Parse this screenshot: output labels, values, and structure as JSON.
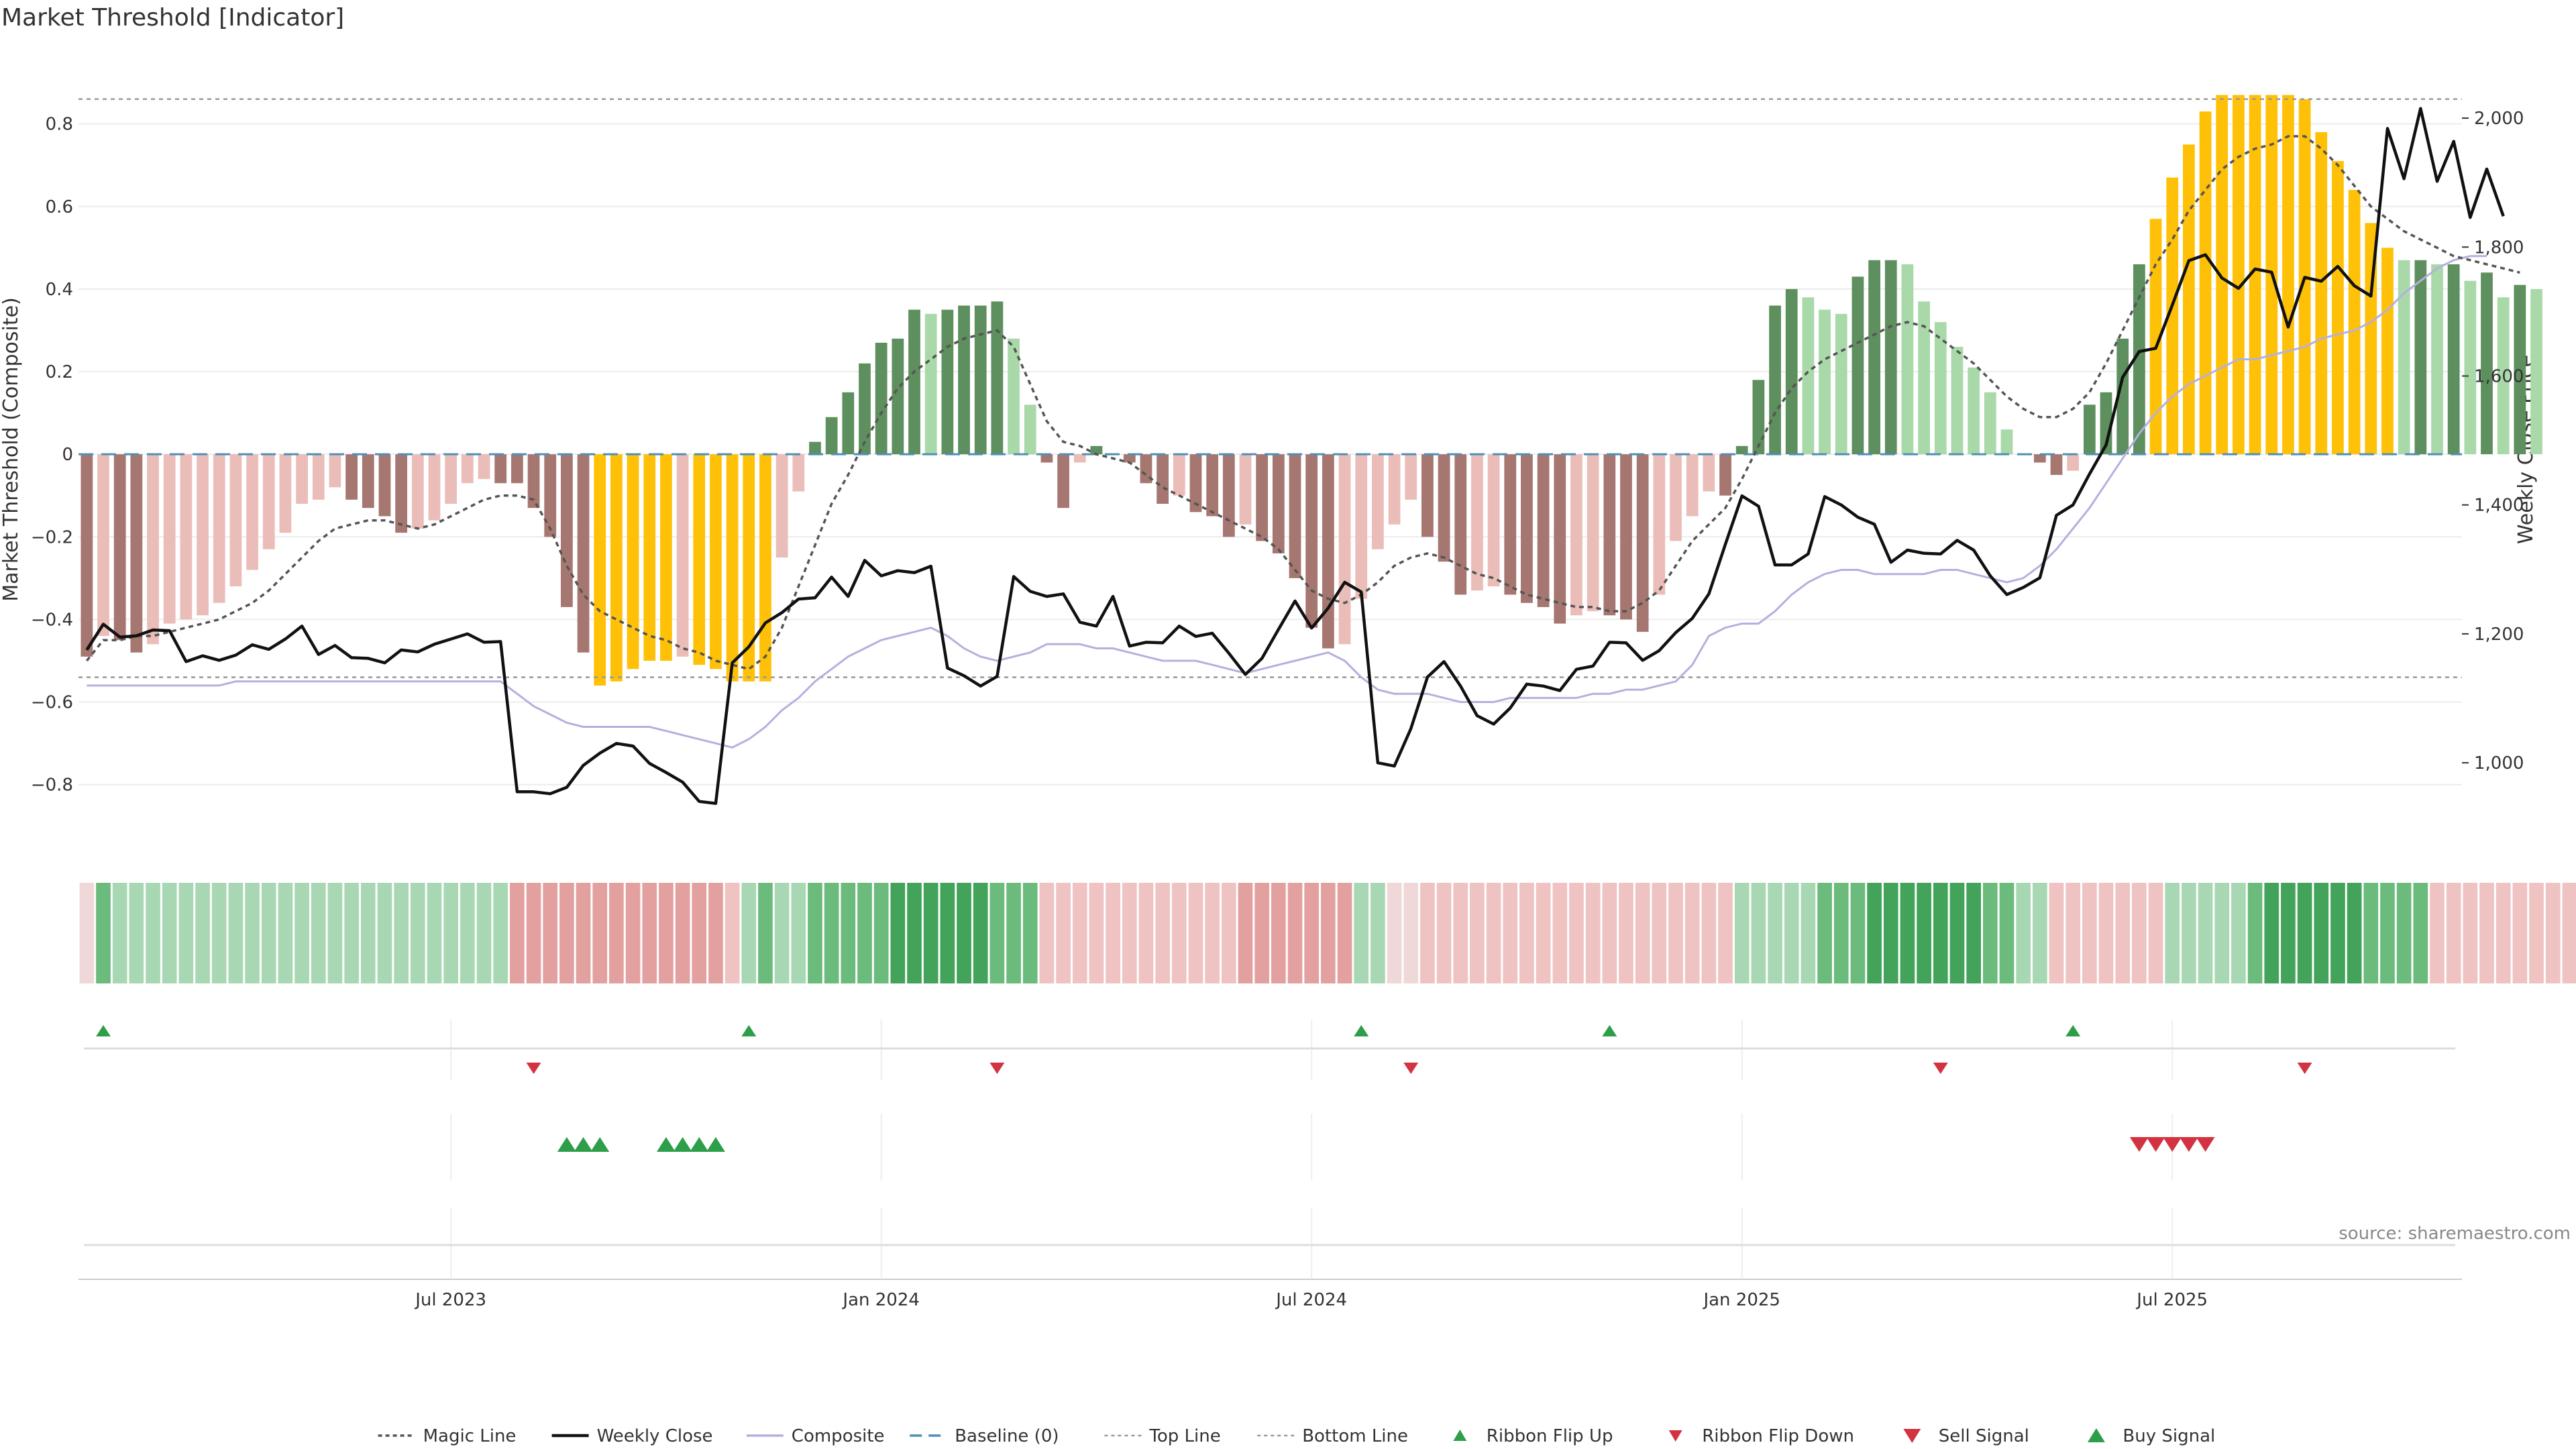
{
  "chart_data": {
    "type": "bar",
    "title": "Market Threshold [Indicator]",
    "ylabel": "Market Threshold (Composite)",
    "y2label": "Weekly Close Price",
    "source": "source: sharemaestro.com",
    "ylim": [
      -0.95,
      0.97
    ],
    "y2lim": [
      870,
      2100
    ],
    "top_line": 0.86,
    "bottom_line": -0.54,
    "grid": true,
    "legend_position": "bottom-center",
    "y_ticks": [
      {
        "v": 0.8,
        "label": "0.8"
      },
      {
        "v": 0.6,
        "label": "0.6"
      },
      {
        "v": 0.4,
        "label": "0.4"
      },
      {
        "v": 0.2,
        "label": "0.2"
      },
      {
        "v": 0,
        "label": "0"
      },
      {
        "v": -0.2,
        "label": "−0.2"
      },
      {
        "v": -0.4,
        "label": "−0.4"
      },
      {
        "v": -0.6,
        "label": "−0.6"
      },
      {
        "v": -0.8,
        "label": "−0.8"
      }
    ],
    "y2_ticks": [
      {
        "v": 2000,
        "label": "2,000"
      },
      {
        "v": 1800,
        "label": "1,800"
      },
      {
        "v": 1600,
        "label": "1,600"
      },
      {
        "v": 1400,
        "label": "1,400"
      },
      {
        "v": 1200,
        "label": "1,200"
      },
      {
        "v": 1000,
        "label": "1,000"
      }
    ],
    "x_ticks": [
      {
        "week": 22,
        "label": "Jul 2023"
      },
      {
        "week": 48,
        "label": "Jan 2024"
      },
      {
        "week": 74,
        "label": "Jul 2024"
      },
      {
        "week": 100,
        "label": "Jan 2025"
      },
      {
        "week": 126,
        "label": "Jul 2025"
      }
    ],
    "weeks": 144,
    "composite_bars": [
      -0.49,
      -0.44,
      -0.45,
      -0.48,
      -0.46,
      -0.41,
      -0.4,
      -0.39,
      -0.36,
      -0.32,
      -0.28,
      -0.23,
      -0.19,
      -0.12,
      -0.11,
      -0.08,
      -0.11,
      -0.13,
      -0.15,
      -0.19,
      -0.18,
      -0.16,
      -0.12,
      -0.07,
      -0.06,
      -0.07,
      -0.07,
      -0.13,
      -0.2,
      -0.37,
      -0.48,
      -0.56,
      -0.55,
      -0.52,
      -0.5,
      -0.5,
      -0.49,
      -0.51,
      -0.52,
      -0.55,
      -0.55,
      -0.55,
      -0.25,
      -0.09,
      0.03,
      0.09,
      0.15,
      0.22,
      0.27,
      0.28,
      0.35,
      0.34,
      0.35,
      0.36,
      0.36,
      0.37,
      0.28,
      0.12,
      -0.02,
      -0.13,
      -0.02,
      0.02,
      0,
      -0.02,
      -0.07,
      -0.12,
      -0.1,
      -0.14,
      -0.15,
      -0.2,
      -0.17,
      -0.21,
      -0.24,
      -0.3,
      -0.42,
      -0.47,
      -0.46,
      -0.35,
      -0.23,
      -0.17,
      -0.11,
      -0.2,
      -0.26,
      -0.34,
      -0.33,
      -0.32,
      -0.34,
      -0.36,
      -0.37,
      -0.41,
      -0.39,
      -0.38,
      -0.39,
      -0.4,
      -0.43,
      -0.34,
      -0.21,
      -0.15,
      -0.09,
      -0.1,
      0.02,
      0.18,
      0.36,
      0.4,
      0.38,
      0.35,
      0.34,
      0.43,
      0.47,
      0.47,
      0.46,
      0.37,
      0.32,
      0.26,
      0.21,
      0.15,
      0.06,
      0,
      -0.02,
      -0.05,
      -0.04,
      0.12,
      0.15,
      0.28,
      0.46,
      0.57,
      0.67,
      0.75,
      0.83,
      0.87,
      0.87,
      0.87,
      0.87,
      0.87,
      0.86,
      0.78,
      0.71,
      0.64,
      0.56,
      0.5,
      0.47,
      0.47,
      0.46,
      0.46,
      0.42,
      0.44,
      0.38,
      0.41,
      0.4
    ],
    "magic_line": [
      -0.5,
      -0.45,
      -0.45,
      -0.44,
      -0.44,
      -0.43,
      -0.42,
      -0.41,
      -0.4,
      -0.38,
      -0.36,
      -0.33,
      -0.29,
      -0.25,
      -0.21,
      -0.18,
      -0.17,
      -0.16,
      -0.16,
      -0.17,
      -0.18,
      -0.17,
      -0.15,
      -0.13,
      -0.11,
      -0.1,
      -0.1,
      -0.11,
      -0.18,
      -0.27,
      -0.34,
      -0.38,
      -0.4,
      -0.42,
      -0.44,
      -0.45,
      -0.47,
      -0.48,
      -0.5,
      -0.51,
      -0.52,
      -0.49,
      -0.42,
      -0.32,
      -0.22,
      -0.12,
      -0.05,
      0.03,
      0.1,
      0.16,
      0.2,
      0.23,
      0.26,
      0.28,
      0.29,
      0.3,
      0.26,
      0.17,
      0.08,
      0.03,
      0.02,
      0.0,
      -0.01,
      -0.02,
      -0.05,
      -0.08,
      -0.1,
      -0.12,
      -0.14,
      -0.16,
      -0.18,
      -0.2,
      -0.23,
      -0.28,
      -0.33,
      -0.35,
      -0.36,
      -0.34,
      -0.31,
      -0.27,
      -0.25,
      -0.24,
      -0.25,
      -0.27,
      -0.29,
      -0.3,
      -0.32,
      -0.34,
      -0.35,
      -0.36,
      -0.37,
      -0.37,
      -0.38,
      -0.38,
      -0.36,
      -0.33,
      -0.27,
      -0.21,
      -0.17,
      -0.13,
      -0.06,
      0.02,
      0.1,
      0.16,
      0.2,
      0.23,
      0.25,
      0.27,
      0.29,
      0.31,
      0.32,
      0.31,
      0.28,
      0.25,
      0.22,
      0.18,
      0.14,
      0.11,
      0.09,
      0.09,
      0.11,
      0.15,
      0.22,
      0.3,
      0.38,
      0.46,
      0.52,
      0.59,
      0.64,
      0.69,
      0.72,
      0.74,
      0.75,
      0.77,
      0.77,
      0.74,
      0.7,
      0.65,
      0.6,
      0.57,
      0.54,
      0.52,
      0.5,
      0.48,
      0.47,
      0.46,
      0.45,
      0.44
    ],
    "weekly_close": [
      1175,
      1215,
      1195,
      1197,
      1206,
      1205,
      1157,
      1166,
      1159,
      1167,
      1183,
      1176,
      1192,
      1212,
      1168,
      1182,
      1163,
      1162,
      1155,
      1175,
      1172,
      1184,
      1192,
      1200,
      1187,
      1188,
      955,
      955,
      952,
      962,
      996,
      1015,
      1030,
      1026,
      999,
      985,
      970,
      940,
      937,
      1155,
      1180,
      1217,
      1233,
      1254,
      1256,
      1288,
      1258,
      1314,
      1290,
      1298,
      1295,
      1305,
      1147,
      1135,
      1119,
      1134,
      1289,
      1266,
      1258,
      1262,
      1218,
      1212,
      1258,
      1181,
      1187,
      1186,
      1212,
      1196,
      1201,
      1170,
      1137,
      1162,
      1207,
      1251,
      1209,
      1240,
      1280,
      1265,
      1000,
      995,
      1053,
      1133,
      1157,
      1119,
      1073,
      1060,
      1085,
      1122,
      1119,
      1112,
      1145,
      1150,
      1187,
      1186,
      1159,
      1174,
      1202,
      1224,
      1262,
      1339,
      1414,
      1398,
      1307,
      1307,
      1324,
      1413,
      1400,
      1381,
      1370,
      1311,
      1330,
      1325,
      1324,
      1345,
      1330,
      1290,
      1261,
      1272,
      1287,
      1384,
      1400,
      1448,
      1493,
      1598,
      1638,
      1643,
      1710,
      1779,
      1788,
      1752,
      1736,
      1766,
      1761,
      1676,
      1753,
      1747,
      1770,
      1740,
      1724,
      1984,
      1906,
      2015,
      1902,
      1964,
      1846,
      1921,
      1848
    ],
    "composite_line": [
      -0.56,
      -0.56,
      -0.56,
      -0.56,
      -0.56,
      -0.56,
      -0.56,
      -0.56,
      -0.56,
      -0.55,
      -0.55,
      -0.55,
      -0.55,
      -0.55,
      -0.55,
      -0.55,
      -0.55,
      -0.55,
      -0.55,
      -0.55,
      -0.55,
      -0.55,
      -0.55,
      -0.55,
      -0.55,
      -0.55,
      -0.58,
      -0.61,
      -0.63,
      -0.65,
      -0.66,
      -0.66,
      -0.66,
      -0.66,
      -0.66,
      -0.67,
      -0.68,
      -0.69,
      -0.7,
      -0.71,
      -0.69,
      -0.66,
      -0.62,
      -0.59,
      -0.55,
      -0.52,
      -0.49,
      -0.47,
      -0.45,
      -0.44,
      -0.43,
      -0.42,
      -0.44,
      -0.47,
      -0.49,
      -0.5,
      -0.49,
      -0.48,
      -0.46,
      -0.46,
      -0.46,
      -0.47,
      -0.47,
      -0.48,
      -0.49,
      -0.5,
      -0.5,
      -0.5,
      -0.51,
      -0.52,
      -0.53,
      -0.52,
      -0.51,
      -0.5,
      -0.49,
      -0.48,
      -0.5,
      -0.54,
      -0.57,
      -0.58,
      -0.58,
      -0.58,
      -0.59,
      -0.6,
      -0.6,
      -0.6,
      -0.59,
      -0.59,
      -0.59,
      -0.59,
      -0.59,
      -0.58,
      -0.58,
      -0.57,
      -0.57,
      -0.56,
      -0.55,
      -0.51,
      -0.44,
      -0.42,
      -0.41,
      -0.41,
      -0.38,
      -0.34,
      -0.31,
      -0.29,
      -0.28,
      -0.28,
      -0.29,
      -0.29,
      -0.29,
      -0.29,
      -0.28,
      -0.28,
      -0.29,
      -0.3,
      -0.31,
      -0.3,
      -0.27,
      -0.23,
      -0.18,
      -0.13,
      -0.07,
      -0.01,
      0.05,
      0.1,
      0.14,
      0.17,
      0.19,
      0.21,
      0.23,
      0.23,
      0.24,
      0.25,
      0.26,
      0.28,
      0.29,
      0.3,
      0.32,
      0.35,
      0.39,
      0.42,
      0.45,
      0.47,
      0.48,
      0.48
    ],
    "ribbon_levels": [
      0,
      2,
      1,
      1,
      1,
      1,
      1,
      1,
      1,
      1,
      1,
      1,
      1,
      1,
      1,
      1,
      1,
      1,
      1,
      1,
      1,
      1,
      1,
      1,
      1,
      1,
      -2,
      -2,
      -2,
      -2,
      -2,
      -2,
      -2,
      -2,
      -2,
      -2,
      -2,
      -2,
      -2,
      -1,
      1,
      2,
      1,
      1,
      2,
      2,
      2,
      2,
      2,
      3,
      3,
      3,
      3,
      3,
      3,
      2,
      2,
      2,
      -1,
      -1,
      -1,
      -1,
      -1,
      -1,
      -1,
      -1,
      -1,
      -1,
      -1,
      -1,
      -2,
      -2,
      -2,
      -2,
      -2,
      -2,
      -2,
      1,
      1,
      0,
      0,
      -1,
      -1,
      -1,
      -1,
      -1,
      -1,
      -1,
      -1,
      -1,
      -1,
      -1,
      -1,
      -1,
      -1,
      -1,
      -1,
      -1,
      -1,
      -1,
      1,
      1,
      1,
      1,
      1,
      2,
      2,
      2,
      3,
      3,
      3,
      3,
      3,
      3,
      3,
      2,
      2,
      1,
      1,
      -1,
      -1,
      -1,
      -1,
      -1,
      -1,
      -1,
      1,
      1,
      1,
      1,
      1,
      2,
      3,
      3,
      3,
      3,
      3,
      3,
      2,
      2,
      2,
      2,
      -1,
      -1,
      -1,
      -1,
      -1,
      -1,
      -1,
      -1,
      -1,
      -1
    ],
    "ribbon_flip_up": [
      1,
      40,
      77,
      92,
      120
    ],
    "ribbon_flip_down": [
      27,
      55,
      80,
      112,
      134
    ],
    "buy_signals": [
      29,
      30,
      31,
      35,
      36,
      37,
      38
    ],
    "sell_signals": [
      124,
      125,
      126,
      127,
      128
    ],
    "legend": [
      {
        "key": "magic",
        "label": "Magic Line"
      },
      {
        "key": "close",
        "label": "Weekly Close"
      },
      {
        "key": "composite",
        "label": "Composite"
      },
      {
        "key": "baseline",
        "label": "Baseline (0)"
      },
      {
        "key": "top",
        "label": "Top Line"
      },
      {
        "key": "bottom",
        "label": "Bottom Line"
      },
      {
        "key": "flip_up",
        "label": "Ribbon Flip Up"
      },
      {
        "key": "flip_down",
        "label": "Ribbon Flip Down"
      },
      {
        "key": "sell",
        "label": "Sell Signal"
      },
      {
        "key": "buy",
        "label": "Buy Signal"
      }
    ],
    "colors": {
      "bar_pos_strong": "#5e8f5e",
      "bar_pos_light": "#a9d9a9",
      "bar_neg_strong": "#a67670",
      "bar_neg_light": "#ebbdb9",
      "bar_extreme": "#ffc107",
      "close_line": "#111111",
      "composite_line": "#b4b0de",
      "magic_line": "#555555",
      "baseline": "#4f8fb5",
      "threshold_lines": "#999999",
      "buy": "#2e9e4a",
      "sell": "#d33340"
    }
  }
}
